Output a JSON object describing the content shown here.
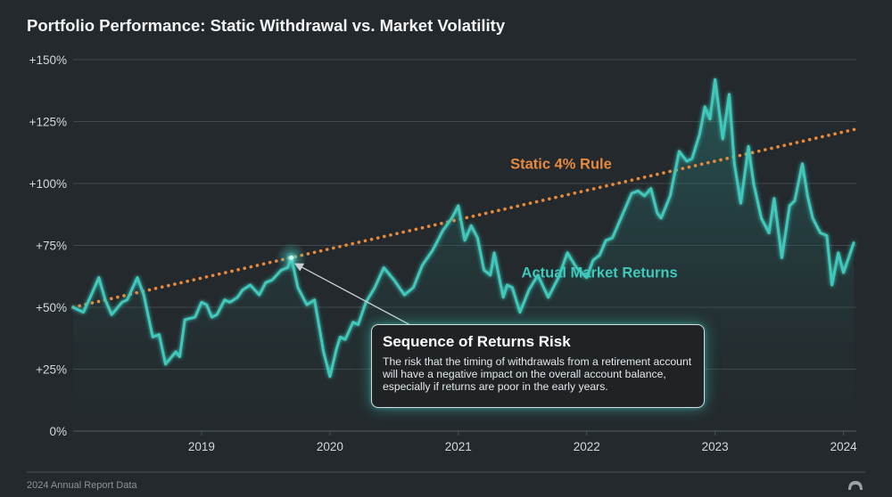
{
  "title": "Portfolio Performance: Static Withdrawal vs. Market Volatility",
  "footer": {
    "source": "2024 Annual Report Data",
    "logo_icon": "logo-icon"
  },
  "callout": {
    "title": "Sequence of Returns Risk",
    "body": "The risk that the timing of withdrawals from a retirement account will have a negative impact on the overall account balance, especially if returns are poor in the early years."
  },
  "colors": {
    "background": "#24292d",
    "market_line": "#3fc9bb",
    "rule_line": "#e88a3c",
    "grid": "#4a5357",
    "axis_text": "#d4d9dc"
  },
  "chart_data": {
    "type": "line",
    "x_ticks": [
      "2019",
      "2020",
      "2021",
      "2022",
      "2023",
      "2024"
    ],
    "y_ticks": [
      "0%",
      "+25%",
      "+50%",
      "+75%",
      "+100%",
      "+125%",
      "+150%"
    ],
    "xlim": [
      2018.0,
      2024.1
    ],
    "ylim": [
      0,
      150
    ],
    "grid": true,
    "series": [
      {
        "name": "Actual Market Returns",
        "style": "solid-area",
        "x": [
          2018.0,
          2018.08,
          2018.15,
          2018.2,
          2018.25,
          2018.3,
          2018.38,
          2018.42,
          2018.5,
          2018.55,
          2018.62,
          2018.67,
          2018.72,
          2018.8,
          2018.83,
          2018.87,
          2018.95,
          2019.0,
          2019.04,
          2019.08,
          2019.12,
          2019.18,
          2019.22,
          2019.28,
          2019.32,
          2019.38,
          2019.45,
          2019.5,
          2019.55,
          2019.62,
          2019.67,
          2019.7,
          2019.75,
          2019.82,
          2019.88,
          2019.92,
          2019.95,
          2020.0,
          2020.05,
          2020.08,
          2020.12,
          2020.18,
          2020.22,
          2020.28,
          2020.35,
          2020.42,
          2020.5,
          2020.58,
          2020.65,
          2020.72,
          2020.8,
          2020.88,
          2020.95,
          2021.0,
          2021.05,
          2021.1,
          2021.15,
          2021.2,
          2021.25,
          2021.28,
          2021.35,
          2021.38,
          2021.42,
          2021.48,
          2021.55,
          2021.62,
          2021.7,
          2021.78,
          2021.85,
          2021.92,
          2022.0,
          2022.05,
          2022.1,
          2022.15,
          2022.2,
          2022.25,
          2022.3,
          2022.35,
          2022.4,
          2022.45,
          2022.5,
          2022.55,
          2022.58,
          2022.65,
          2022.72,
          2022.78,
          2022.82,
          2022.88,
          2022.92,
          2022.96,
          2023.0,
          2023.03,
          2023.06,
          2023.11,
          2023.15,
          2023.2,
          2023.26,
          2023.3,
          2023.36,
          2023.42,
          2023.46,
          2023.52,
          2023.58,
          2023.62,
          2023.68,
          2023.72,
          2023.76,
          2023.82,
          2023.87,
          2023.91,
          2023.96,
          2024.0,
          2024.04,
          2024.08
        ],
        "y": [
          50,
          48,
          56,
          62,
          53,
          47,
          52,
          53,
          62,
          55,
          38,
          39,
          27,
          32,
          30,
          45,
          46,
          52,
          51,
          46,
          47,
          53,
          52,
          54,
          57,
          59,
          55,
          60,
          61,
          65,
          66,
          70,
          58,
          51,
          53,
          41,
          32,
          22,
          33,
          38,
          37,
          44,
          43,
          52,
          58,
          66,
          61,
          55,
          58,
          67,
          73,
          81,
          86,
          91,
          77,
          83,
          78,
          65,
          63,
          72,
          54,
          59,
          58,
          48,
          57,
          63,
          54,
          62,
          72,
          66,
          62,
          69,
          71,
          77,
          78,
          84,
          90,
          96,
          97,
          95,
          98,
          88,
          86,
          95,
          113,
          109,
          110,
          120,
          131,
          126,
          142,
          130,
          118,
          136,
          108,
          92,
          115,
          100,
          86,
          80,
          94,
          70,
          91,
          93,
          108,
          95,
          86,
          80,
          79,
          59,
          72,
          64,
          70,
          76
        ]
      },
      {
        "name": "Static 4% Rule",
        "style": "dotted",
        "x": [
          2018.0,
          2024.1
        ],
        "y": [
          50,
          122
        ]
      }
    ],
    "annotations": [
      {
        "text": "Static 4% Rule",
        "x": 2021.8,
        "y": 106
      },
      {
        "text": "Actual Market Returns",
        "x": 2022.1,
        "y": 62
      },
      {
        "marker": "glow",
        "x": 2019.7,
        "y": 70
      }
    ]
  }
}
